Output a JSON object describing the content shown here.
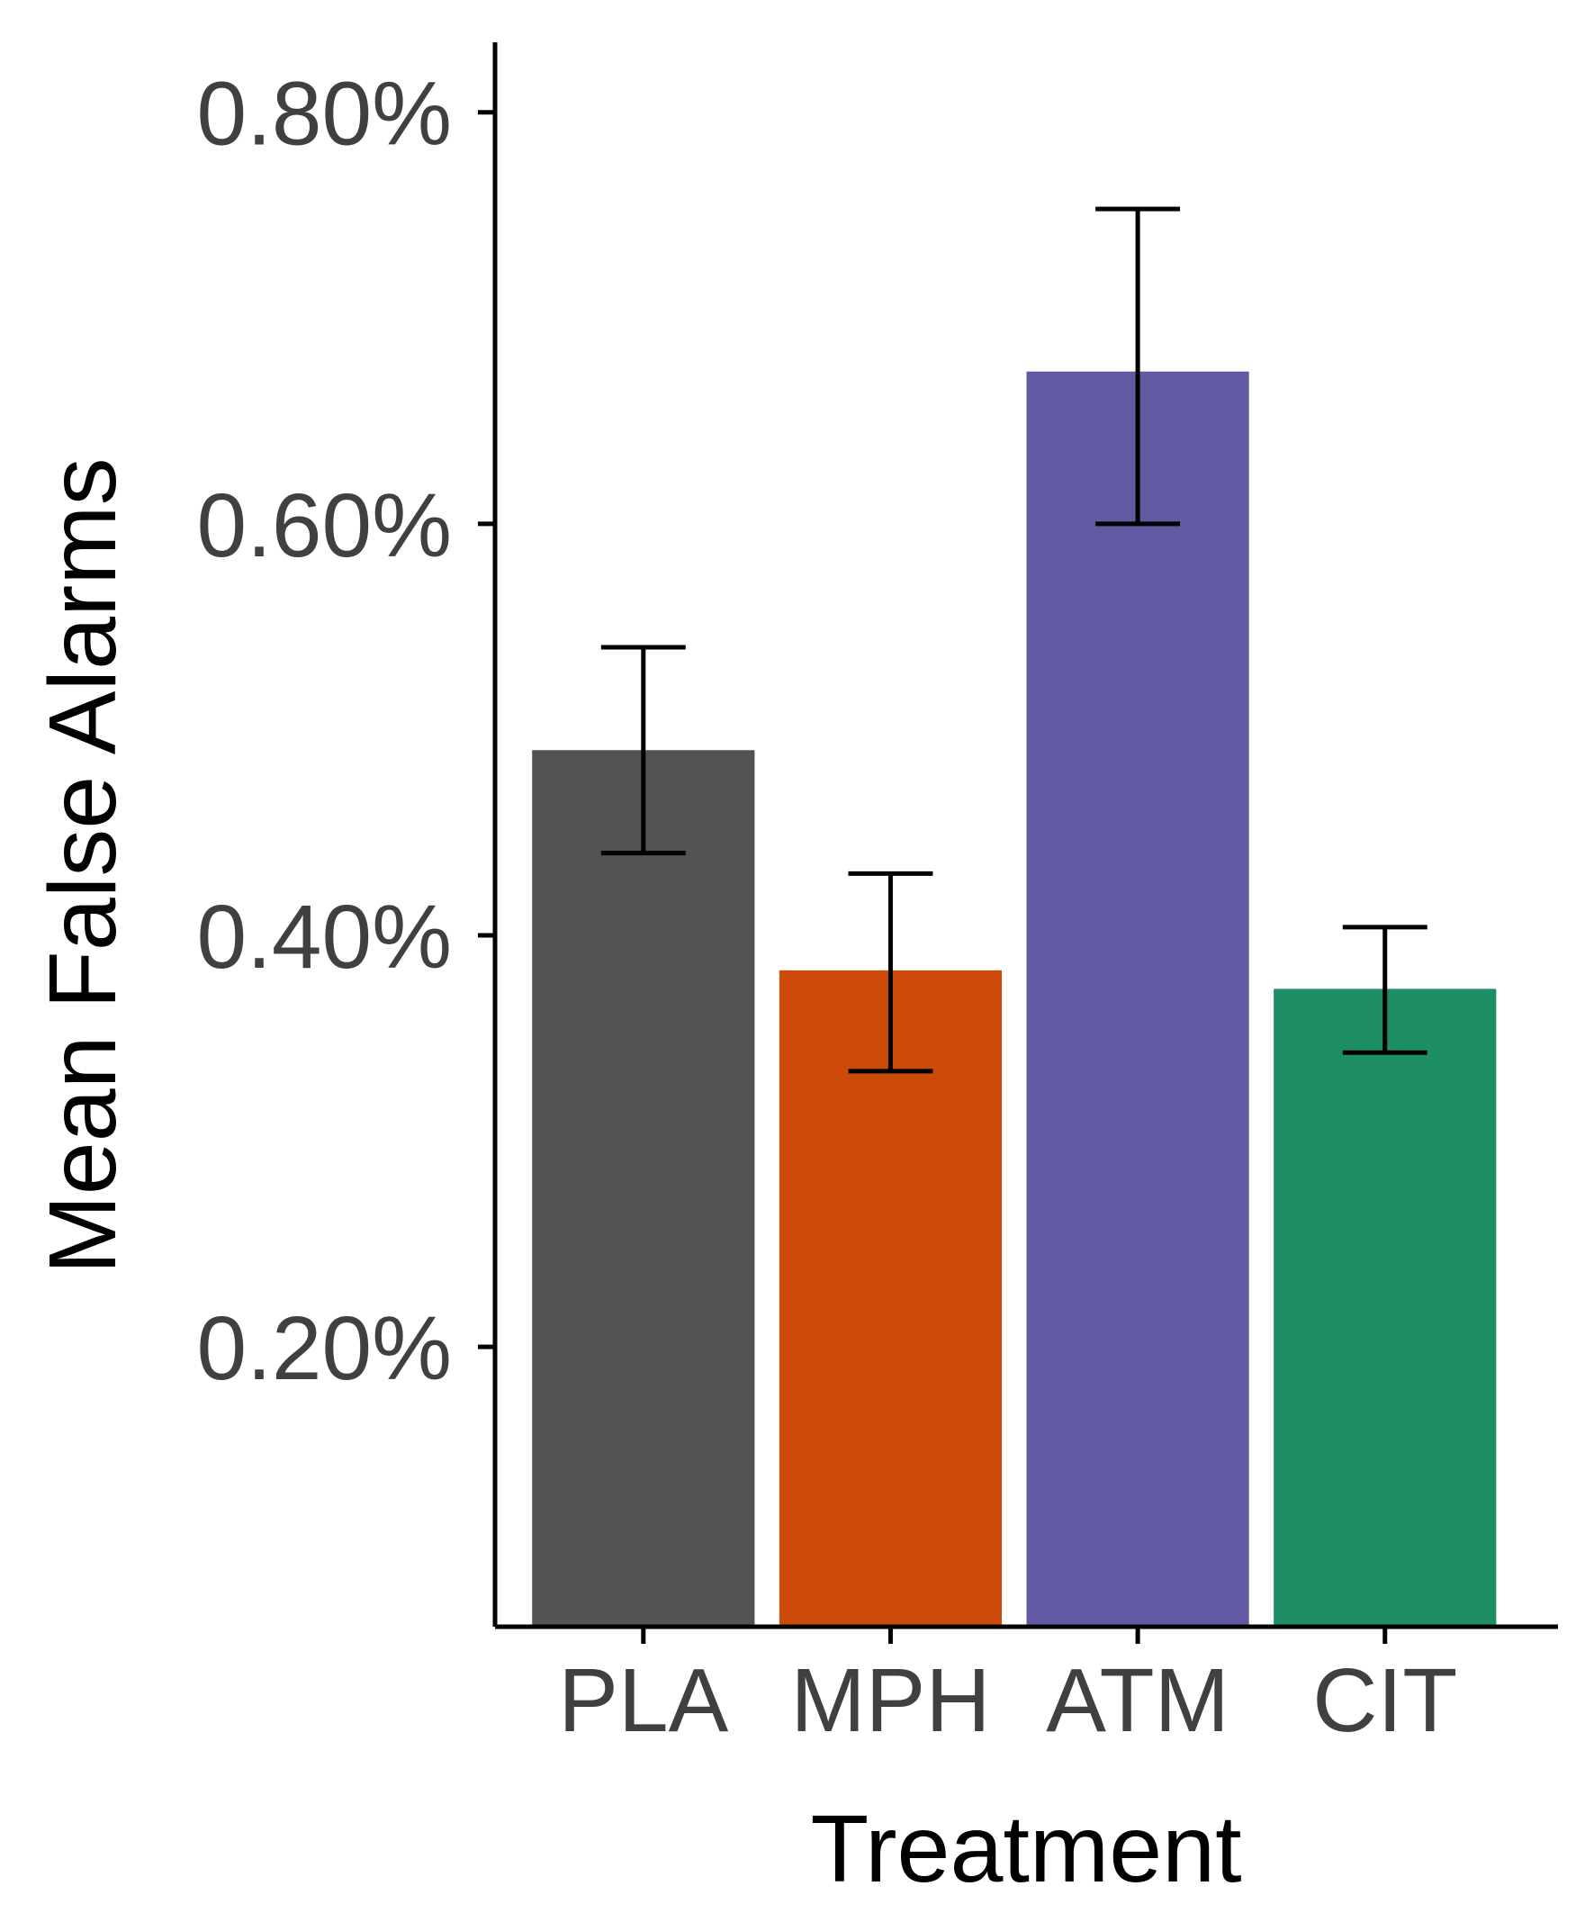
{
  "chart_data": {
    "type": "bar",
    "title": "",
    "xlabel": "Treatment",
    "ylabel": "Mean False Alarms",
    "categories": [
      "PLA",
      "MPH",
      "ATM",
      "CIT"
    ],
    "values": [
      0.49,
      0.383,
      0.674,
      0.374
    ],
    "error_low": [
      0.44,
      0.334,
      0.6,
      0.343
    ],
    "error_high": [
      0.54,
      0.43,
      0.753,
      0.404
    ],
    "colors": [
      "#525252",
      "#CC4A0A",
      "#625BA3",
      "#1E8F64"
    ],
    "y_ticks": [
      0.002,
      0.004,
      0.006,
      0.008
    ],
    "y_tick_labels": [
      "0.20%",
      "0.40%",
      "0.60%",
      "0.80%"
    ],
    "y_unit_scale": 0.01,
    "ylim": [
      0.00064,
      0.00834
    ],
    "grid": false,
    "legend": "none"
  }
}
